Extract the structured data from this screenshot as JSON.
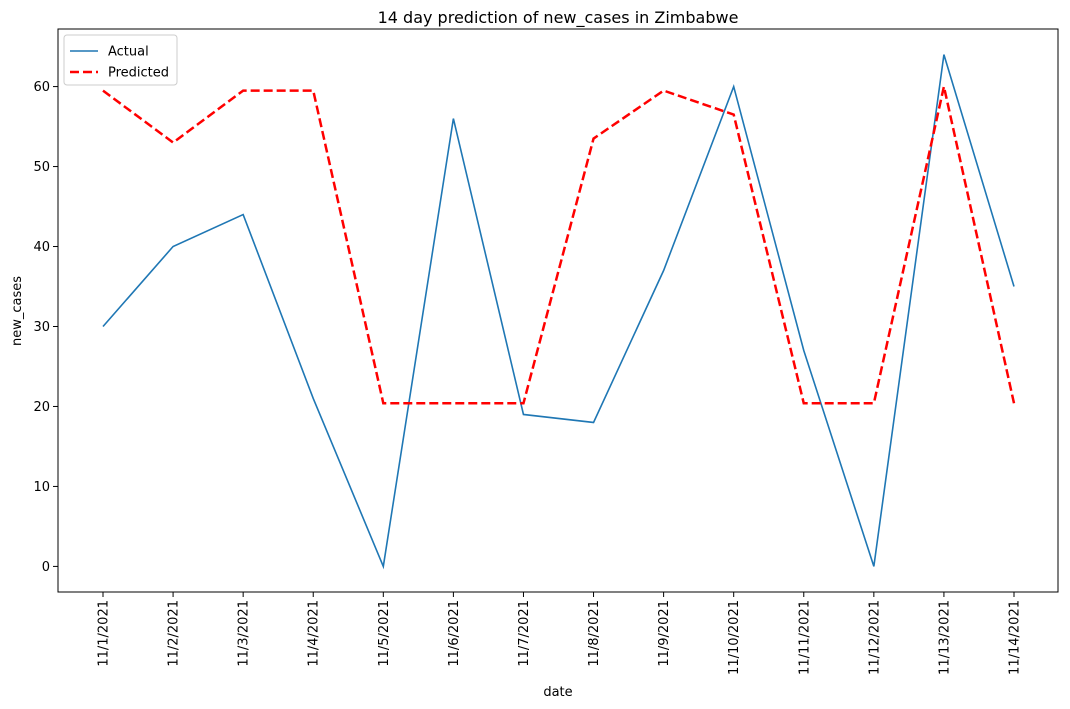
{
  "chart_data": {
    "type": "line",
    "title": "14 day prediction of new_cases in Zimbabwe",
    "xlabel": "date",
    "ylabel": "new_cases",
    "categories": [
      "11/1/2021",
      "11/2/2021",
      "11/3/2021",
      "11/4/2021",
      "11/5/2021",
      "11/6/2021",
      "11/7/2021",
      "11/8/2021",
      "11/9/2021",
      "11/10/2021",
      "11/11/2021",
      "11/12/2021",
      "11/13/2021",
      "11/14/2021"
    ],
    "yticks": [
      0,
      10,
      20,
      30,
      40,
      50,
      60
    ],
    "ylim": [
      -3.2,
      67.2
    ],
    "grid": false,
    "legend_position": "top-left",
    "series": [
      {
        "name": "Actual",
        "color": "#1f77b4",
        "style": "solid",
        "values": [
          30,
          40,
          44,
          21,
          0,
          56,
          19,
          18,
          37,
          60,
          27,
          0,
          64,
          35
        ]
      },
      {
        "name": "Predicted",
        "color": "#ff0000",
        "style": "dashed",
        "values": [
          59.5,
          53,
          59.5,
          59.5,
          20.4,
          20.4,
          20.4,
          53.5,
          59.5,
          56.5,
          20.4,
          20.4,
          60,
          20.4
        ]
      }
    ]
  }
}
